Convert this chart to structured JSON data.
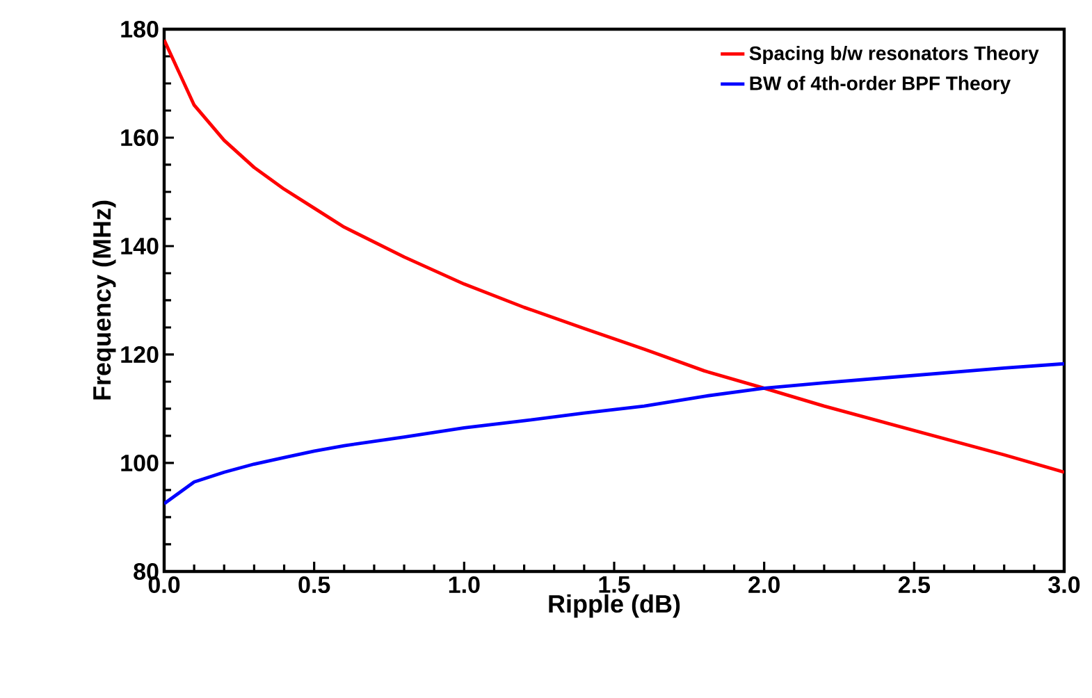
{
  "chart_data": {
    "type": "line",
    "xlabel": "Ripple (dB)",
    "ylabel": "Frequency (MHz)",
    "x": [
      0,
      0.1,
      0.2,
      0.3,
      0.4,
      0.5,
      0.6,
      0.8,
      1.0,
      1.2,
      1.4,
      1.6,
      1.8,
      2.0,
      2.2,
      2.4,
      2.6,
      2.8,
      3.0
    ],
    "series": [
      {
        "name": "Spacing b/w resonators Theory",
        "color": "#ff0000",
        "values": [
          178,
          166,
          159.5,
          154.5,
          150.5,
          147,
          143.5,
          138,
          133,
          128.7,
          124.8,
          121,
          117,
          113.8,
          110.5,
          107.5,
          104.5,
          101.5,
          98.3
        ]
      },
      {
        "name": "BW of 4th-order BPF Theory",
        "color": "#0000ff",
        "values": [
          92.5,
          96.5,
          98.3,
          99.8,
          101,
          102.2,
          103.2,
          104.8,
          106.5,
          107.8,
          109.2,
          110.5,
          112.3,
          113.8,
          114.8,
          115.7,
          116.6,
          117.5,
          118.3
        ]
      }
    ],
    "xlim": [
      0,
      3.0
    ],
    "ylim": [
      80,
      180
    ],
    "xticks": [
      {
        "value": 0,
        "label": "0.0"
      },
      0.5,
      {
        "value": 1,
        "label": "1.0"
      },
      1.5,
      {
        "value": 2,
        "label": "2.0"
      },
      2.5,
      {
        "value": 3,
        "label": "3.0"
      }
    ],
    "yticks": [
      80,
      100,
      120,
      140,
      160,
      180
    ],
    "legend": "top right",
    "grid": false,
    "marker": "none",
    "line_style": "solid"
  }
}
